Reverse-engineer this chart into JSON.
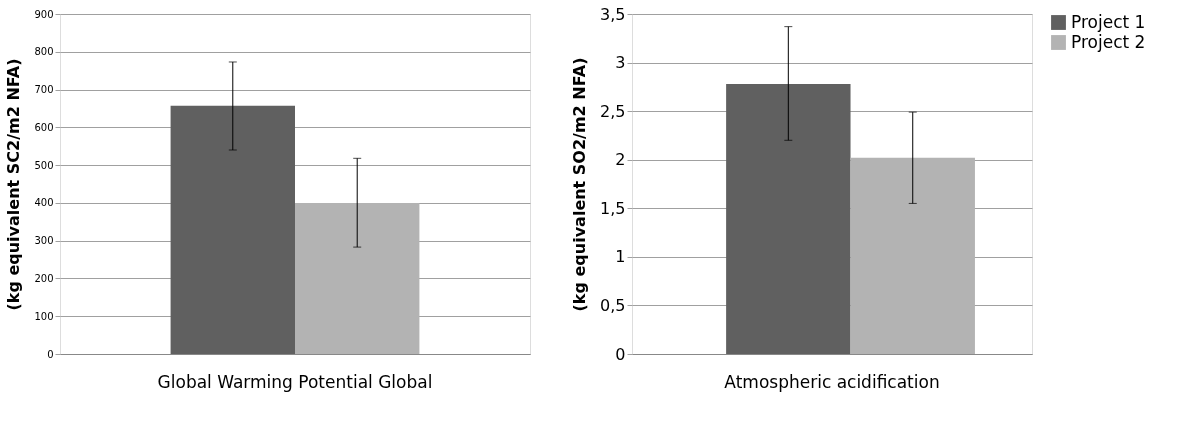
{
  "chart_data": [
    {
      "type": "bar",
      "ylabel": "(kg equivalent SC2/m2 NFA)",
      "categories": [
        "Global Warming Potential Global"
      ],
      "ylim": [
        0,
        900
      ],
      "yticks": [
        0,
        100,
        200,
        300,
        400,
        500,
        600,
        700,
        800,
        900
      ],
      "grid": "y",
      "legend": false,
      "series": [
        {
          "color": "#606060",
          "values": [
            657
          ],
          "errors": [
            [
              540,
              773
            ]
          ]
        },
        {
          "color": "#b3b3b3",
          "values": [
            400
          ],
          "errors": [
            [
              283,
              518
            ]
          ]
        }
      ]
    },
    {
      "type": "bar",
      "ylabel": "(kg equivalent SO2/m2 NFA)",
      "categories": [
        "Atmospheric acidification"
      ],
      "ylim": [
        0,
        3.5
      ],
      "yticks": [
        0,
        {
          "value": 0.5,
          "label": "0,5"
        },
        1,
        {
          "value": 1.5,
          "label": "1,5"
        },
        2,
        {
          "value": 2.5,
          "label": "2,5"
        },
        3,
        {
          "value": 3.5,
          "label": "3,5"
        }
      ],
      "grid": "y",
      "legend": "top right",
      "series": [
        {
          "name": "Project 1",
          "color": "#606060",
          "values": [
            2.78
          ],
          "errors": [
            [
              2.2,
              3.37
            ]
          ]
        },
        {
          "name": "Project 2",
          "color": "#b3b3b3",
          "values": [
            2.02
          ],
          "errors": [
            [
              1.55,
              2.49
            ]
          ]
        }
      ]
    }
  ]
}
